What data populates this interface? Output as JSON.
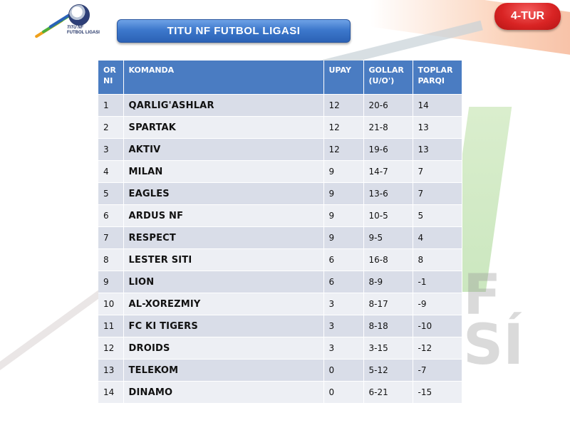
{
  "logo": {
    "line1": "TITU NF",
    "line2": "FUTBOL LIGASI"
  },
  "header": {
    "title": "TITU NF FUTBOL LIGASI",
    "round": "4-TUR"
  },
  "background_text": "F\nSI",
  "table": {
    "headers": [
      "OR NI",
      "KOMANDA",
      "UPAY",
      "GOLLAR (U/O')",
      "TOPLAR PARQI"
    ],
    "rows": [
      {
        "rank": "1",
        "team": "QARLIG'ASHLAR",
        "points": "12",
        "goals": "20-6",
        "diff": "14"
      },
      {
        "rank": "2",
        "team": "SPARTAK",
        "points": "12",
        "goals": "21-8",
        "diff": "13"
      },
      {
        "rank": "3",
        "team": "AKTIV",
        "points": "12",
        "goals": "19-6",
        "diff": "13"
      },
      {
        "rank": "4",
        "team": "MILAN",
        "points": "9",
        "goals": "14-7",
        "diff": "7"
      },
      {
        "rank": "5",
        "team": "EAGLES",
        "points": "9",
        "goals": "13-6",
        "diff": "7"
      },
      {
        "rank": "6",
        "team": "ARDUS NF",
        "points": "9",
        "goals": "10-5",
        "diff": "5"
      },
      {
        "rank": "7",
        "team": "RESPECT",
        "points": "9",
        "goals": "9-5",
        "diff": "4"
      },
      {
        "rank": "8",
        "team": "LESTER SITI",
        "points": "6",
        "goals": "16-8",
        "diff": "8"
      },
      {
        "rank": "9",
        "team": "LION",
        "points": "6",
        "goals": "8-9",
        "diff": "-1"
      },
      {
        "rank": "10",
        "team": "AL-XOREZMIY",
        "points": "3",
        "goals": "8-17",
        "diff": "-9"
      },
      {
        "rank": "11",
        "team": "FC KI TIGERS",
        "points": "3",
        "goals": "8-18",
        "diff": "-10"
      },
      {
        "rank": "12",
        "team": "DROIDS",
        "points": "3",
        "goals": "3-15",
        "diff": "-12"
      },
      {
        "rank": "13",
        "team": "TELEKOM",
        "points": "0",
        "goals": "5-12",
        "diff": "-7"
      },
      {
        "rank": "14",
        "team": "DINAMO",
        "points": "0",
        "goals": "6-21",
        "diff": "-15"
      }
    ]
  },
  "colors": {
    "header_bg": "#4a7cc2",
    "row_odd": "#d9dde8",
    "row_even": "#edeff4",
    "title_bar": "#3d78cc",
    "badge": "#d92424"
  }
}
